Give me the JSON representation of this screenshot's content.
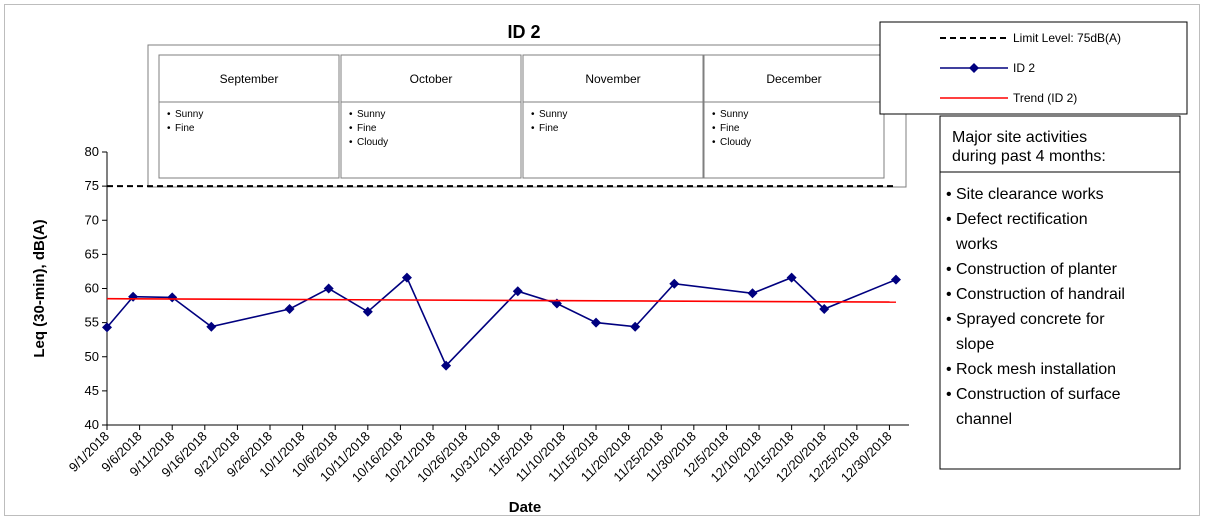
{
  "chart_data": {
    "type": "line",
    "title": "ID 2",
    "xlabel": "Date",
    "ylabel": "Leq (30-min), dB(A)",
    "ylim": [
      40,
      80
    ],
    "yticks": [
      40,
      45,
      50,
      55,
      60,
      65,
      70,
      75,
      80
    ],
    "xlim": [
      "2018-09-01",
      "2019-01-02"
    ],
    "xtick_labels": [
      "9/1/2018",
      "9/6/2018",
      "9/11/2018",
      "9/16/2018",
      "9/21/2018",
      "9/26/2018",
      "10/1/2018",
      "10/6/2018",
      "10/11/2018",
      "10/16/2018",
      "10/21/2018",
      "10/26/2018",
      "10/31/2018",
      "11/5/2018",
      "11/10/2018",
      "11/15/2018",
      "11/20/2018",
      "11/25/2018",
      "11/30/2018",
      "12/5/2018",
      "12/10/2018",
      "12/15/2018",
      "12/20/2018",
      "12/25/2018",
      "12/30/2018"
    ],
    "xtick_dates": [
      "2018-09-01",
      "2018-09-06",
      "2018-09-11",
      "2018-09-16",
      "2018-09-21",
      "2018-09-26",
      "2018-10-01",
      "2018-10-06",
      "2018-10-11",
      "2018-10-16",
      "2018-10-21",
      "2018-10-26",
      "2018-10-31",
      "2018-11-05",
      "2018-11-10",
      "2018-11-15",
      "2018-11-20",
      "2018-11-25",
      "2018-11-30",
      "2018-12-05",
      "2018-12-10",
      "2018-12-15",
      "2018-12-20",
      "2018-12-25",
      "2018-12-30"
    ],
    "grid": false,
    "legend_position": "top-right",
    "series": [
      {
        "name": "ID 2",
        "color": "#00007f",
        "marker": "diamond",
        "x": [
          "2018-09-01",
          "2018-09-05",
          "2018-09-11",
          "2018-09-17",
          "2018-09-29",
          "2018-10-05",
          "2018-10-11",
          "2018-10-17",
          "2018-10-23",
          "2018-11-03",
          "2018-11-09",
          "2018-11-15",
          "2018-11-21",
          "2018-11-27",
          "2018-12-09",
          "2018-12-15",
          "2018-12-20",
          "2018-12-31"
        ],
        "y": [
          54.3,
          58.8,
          58.7,
          54.4,
          57.0,
          60.0,
          56.6,
          61.6,
          48.7,
          59.6,
          57.8,
          55.0,
          54.4,
          60.7,
          59.3,
          61.6,
          57.0,
          61.3
        ]
      },
      {
        "name": "Trend (ID 2)",
        "color": "#ff0000",
        "x": [
          "2018-09-01",
          "2018-12-31"
        ],
        "y": [
          58.5,
          58.0
        ]
      },
      {
        "name": "Limit Level: 75dB(A)",
        "color": "#000000",
        "style": "dashed",
        "x": [
          "2018-09-01",
          "2018-12-31"
        ],
        "y": [
          75,
          75
        ]
      }
    ],
    "annotations": {
      "months": [
        {
          "name": "September",
          "weather": [
            "Sunny",
            "Fine"
          ]
        },
        {
          "name": "October",
          "weather": [
            "Sunny",
            "Fine",
            "Cloudy"
          ]
        },
        {
          "name": "November",
          "weather": [
            "Sunny",
            "Fine"
          ]
        },
        {
          "name": "December",
          "weather": [
            "Sunny",
            "Fine",
            "Cloudy"
          ]
        }
      ],
      "activities_header": [
        "Major site activities",
        "during past 4 months:"
      ],
      "activities": [
        [
          "Site clearance works"
        ],
        [
          "Defect rectification",
          "works"
        ],
        [
          "Construction of planter"
        ],
        [
          "Construction of handrail"
        ],
        [
          "Sprayed concrete for",
          "slope"
        ],
        [
          "Rock mesh installation"
        ],
        [
          "Construction of surface",
          "channel"
        ]
      ]
    }
  }
}
